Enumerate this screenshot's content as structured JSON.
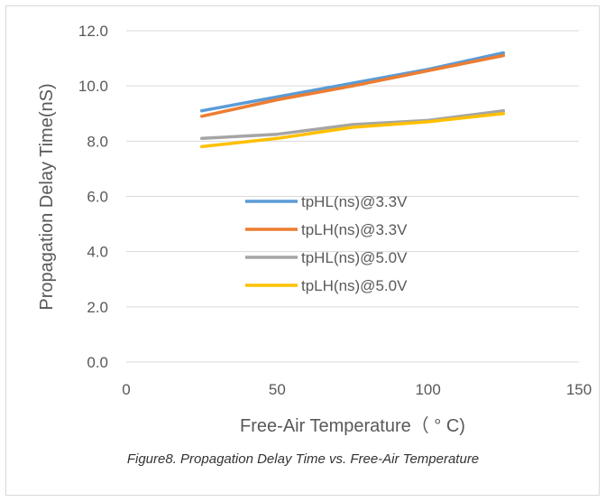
{
  "caption": "Figure8. Propagation Delay Time vs. Free-Air Temperature",
  "chart_data": {
    "type": "line",
    "title": "",
    "xlabel": "Free-Air Temperature（ ° C)",
    "ylabel": "Propagation Delay Time(nS)",
    "xlim": [
      0,
      150
    ],
    "ylim": [
      0,
      12
    ],
    "x_ticks": [
      "0",
      "50",
      "100",
      "150"
    ],
    "y_ticks": [
      "0.0",
      "2.0",
      "4.0",
      "6.0",
      "8.0",
      "10.0",
      "12.0"
    ],
    "grid": "horizontal",
    "legend_position": "center",
    "x": [
      25,
      50,
      75,
      100,
      125
    ],
    "series": [
      {
        "name": "tpHL(ns)@3.3V",
        "color": "#5b9bd5",
        "values": [
          9.1,
          9.6,
          10.1,
          10.6,
          11.2
        ]
      },
      {
        "name": "tpLH(ns)@3.3V",
        "color": "#ed7d31",
        "values": [
          8.9,
          9.5,
          10.0,
          10.55,
          11.1
        ]
      },
      {
        "name": "tpHL(ns)@5.0V",
        "color": "#a5a5a5",
        "values": [
          8.1,
          8.25,
          8.6,
          8.75,
          9.1
        ]
      },
      {
        "name": "tpLH(ns)@5.0V",
        "color": "#ffc000",
        "values": [
          7.8,
          8.1,
          8.5,
          8.7,
          9.0
        ]
      }
    ]
  }
}
